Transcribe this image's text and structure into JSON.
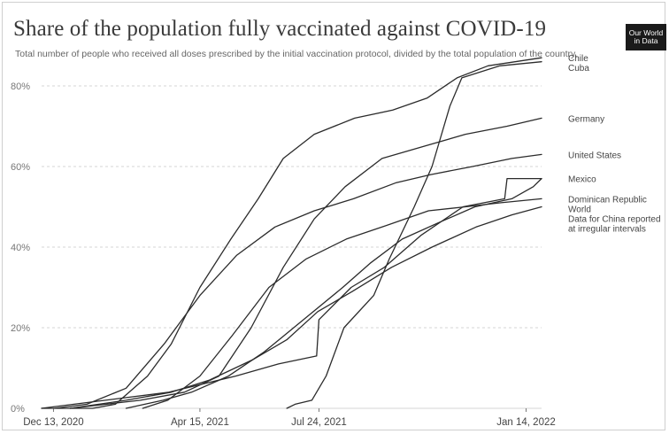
{
  "title": "Share of the population fully vaccinated against COVID-19",
  "subtitle": "Total number of people who received all doses prescribed by the initial vaccination protocol, divided by the total population of the country.",
  "logo_text": "Our World in Data",
  "colors": {
    "line": "#2b2b2b",
    "grid": "#d6d6d6",
    "axis": "#777777"
  },
  "chart_data": {
    "type": "line",
    "title": "Share of the population fully vaccinated against COVID-19",
    "xlabel": "",
    "ylabel": "",
    "x_range": [
      "2020-12-03",
      "2022-01-27"
    ],
    "ylim": [
      0,
      80
    ],
    "y_ticks": [
      0,
      20,
      40,
      60,
      80
    ],
    "y_tick_labels": [
      "0%",
      "20%",
      "40%",
      "60%",
      "80%"
    ],
    "x_ticks": [
      "2020-12-13",
      "2021-04-15",
      "2021-07-24",
      "2022-01-14"
    ],
    "x_tick_labels": [
      "Dec 13, 2020",
      "Apr 15, 2021",
      "Jul 24, 2021",
      "Jan 14, 2022"
    ],
    "grid": "horizontal dashed",
    "legend": "right, labels at line ends",
    "series": [
      {
        "name": "Chile",
        "points": [
          [
            "2020-12-03",
            0
          ],
          [
            "2021-01-15",
            0
          ],
          [
            "2021-02-03",
            1
          ],
          [
            "2021-03-02",
            8
          ],
          [
            "2021-03-22",
            16
          ],
          [
            "2021-04-15",
            30
          ],
          [
            "2021-05-11",
            42
          ],
          [
            "2021-06-03",
            52
          ],
          [
            "2021-06-24",
            62
          ],
          [
            "2021-07-20",
            68
          ],
          [
            "2021-08-23",
            72
          ],
          [
            "2021-09-24",
            74
          ],
          [
            "2021-10-23",
            77
          ],
          [
            "2021-11-17",
            82
          ],
          [
            "2021-12-13",
            85
          ],
          [
            "2022-01-27",
            87
          ]
        ]
      },
      {
        "name": "Cuba",
        "points": [
          [
            "2021-06-27",
            0
          ],
          [
            "2021-07-04",
            1
          ],
          [
            "2021-07-18",
            2
          ],
          [
            "2021-07-30",
            8
          ],
          [
            "2021-08-14",
            20
          ],
          [
            "2021-09-08",
            28
          ],
          [
            "2021-09-21",
            37
          ],
          [
            "2021-10-12",
            50
          ],
          [
            "2021-10-27",
            60
          ],
          [
            "2021-11-11",
            75
          ],
          [
            "2021-11-21",
            82
          ],
          [
            "2021-12-23",
            85
          ],
          [
            "2022-01-27",
            86
          ]
        ]
      },
      {
        "name": "Germany",
        "points": [
          [
            "2020-12-27",
            0
          ],
          [
            "2021-02-24",
            2
          ],
          [
            "2021-04-02",
            4
          ],
          [
            "2021-05-01",
            8
          ],
          [
            "2021-05-28",
            20
          ],
          [
            "2021-06-24",
            35
          ],
          [
            "2021-07-20",
            47
          ],
          [
            "2021-08-15",
            55
          ],
          [
            "2021-09-15",
            62
          ],
          [
            "2021-10-20",
            65
          ],
          [
            "2021-11-24",
            68
          ],
          [
            "2021-12-29",
            70
          ],
          [
            "2022-01-27",
            72
          ]
        ]
      },
      {
        "name": "United States",
        "points": [
          [
            "2020-12-14",
            0
          ],
          [
            "2021-01-10",
            1
          ],
          [
            "2021-02-12",
            5
          ],
          [
            "2021-03-16",
            16
          ],
          [
            "2021-04-15",
            28
          ],
          [
            "2021-05-16",
            38
          ],
          [
            "2021-06-17",
            45
          ],
          [
            "2021-07-20",
            49
          ],
          [
            "2021-08-22",
            52
          ],
          [
            "2021-09-27",
            56
          ],
          [
            "2021-10-26",
            58
          ],
          [
            "2021-11-30",
            60
          ],
          [
            "2022-01-02",
            62
          ],
          [
            "2022-01-27",
            63
          ]
        ]
      },
      {
        "name": "Mexico",
        "points": [
          [
            "2021-02-12",
            0
          ],
          [
            "2021-03-15",
            2
          ],
          [
            "2021-04-08",
            4
          ],
          [
            "2021-05-09",
            8
          ],
          [
            "2021-06-08",
            14
          ],
          [
            "2021-07-11",
            22
          ],
          [
            "2021-08-13",
            30
          ],
          [
            "2021-09-05",
            36
          ],
          [
            "2021-10-02",
            42
          ],
          [
            "2021-11-01",
            46
          ],
          [
            "2021-12-02",
            50
          ],
          [
            "2022-01-02",
            52
          ],
          [
            "2022-01-20",
            55
          ],
          [
            "2022-01-27",
            57
          ]
        ]
      },
      {
        "name": "Dominican Republic",
        "points": [
          [
            "2021-02-26",
            0
          ],
          [
            "2021-03-19",
            2
          ],
          [
            "2021-04-15",
            8
          ],
          [
            "2021-05-12",
            18
          ],
          [
            "2021-06-12",
            30
          ],
          [
            "2021-07-13",
            37
          ],
          [
            "2021-08-16",
            42
          ],
          [
            "2021-09-15",
            45
          ],
          [
            "2021-10-24",
            49
          ],
          [
            "2021-11-24",
            50
          ],
          [
            "2021-12-23",
            51
          ],
          [
            "2022-01-27",
            52
          ]
        ]
      },
      {
        "name": "World",
        "points": [
          [
            "2020-12-27",
            0
          ],
          [
            "2021-02-12",
            2
          ],
          [
            "2021-03-22",
            4
          ],
          [
            "2021-04-23",
            7
          ],
          [
            "2021-05-29",
            12
          ],
          [
            "2021-06-27",
            17
          ],
          [
            "2021-07-23",
            24
          ],
          [
            "2021-08-21",
            29
          ],
          [
            "2021-09-23",
            35
          ],
          [
            "2021-10-27",
            40
          ],
          [
            "2021-12-03",
            45
          ],
          [
            "2022-01-02",
            48
          ],
          [
            "2022-01-27",
            50
          ]
        ]
      },
      {
        "name": "Data for China reported at irregular intervals",
        "points": [
          [
            "2020-12-03",
            0
          ],
          [
            "2021-03-20",
            4
          ],
          [
            "2021-05-15",
            8
          ],
          [
            "2021-06-20",
            11
          ],
          [
            "2021-07-22",
            13
          ],
          [
            "2021-07-24",
            22
          ],
          [
            "2021-08-20",
            30
          ],
          [
            "2021-09-17",
            35
          ],
          [
            "2021-10-18",
            43
          ],
          [
            "2021-11-22",
            50
          ],
          [
            "2021-12-27",
            52
          ],
          [
            "2021-12-29",
            57
          ],
          [
            "2022-01-27",
            57
          ]
        ]
      }
    ],
    "labels": [
      {
        "text": "Chile",
        "series": "Chile"
      },
      {
        "text": "Cuba",
        "series": "Cuba"
      },
      {
        "text": "Germany",
        "series": "Germany"
      },
      {
        "text": "United States",
        "series": "United States"
      },
      {
        "text": "Mexico",
        "series": "Mexico"
      },
      {
        "text": "Dominican Republic",
        "series": "Dominican Republic"
      },
      {
        "text": "World",
        "series": "World"
      },
      {
        "text": "Data for China reported",
        "series": "Data for China reported at irregular intervals"
      },
      {
        "text": "at irregular intervals",
        "series": "Data for China reported at irregular intervals"
      }
    ]
  }
}
